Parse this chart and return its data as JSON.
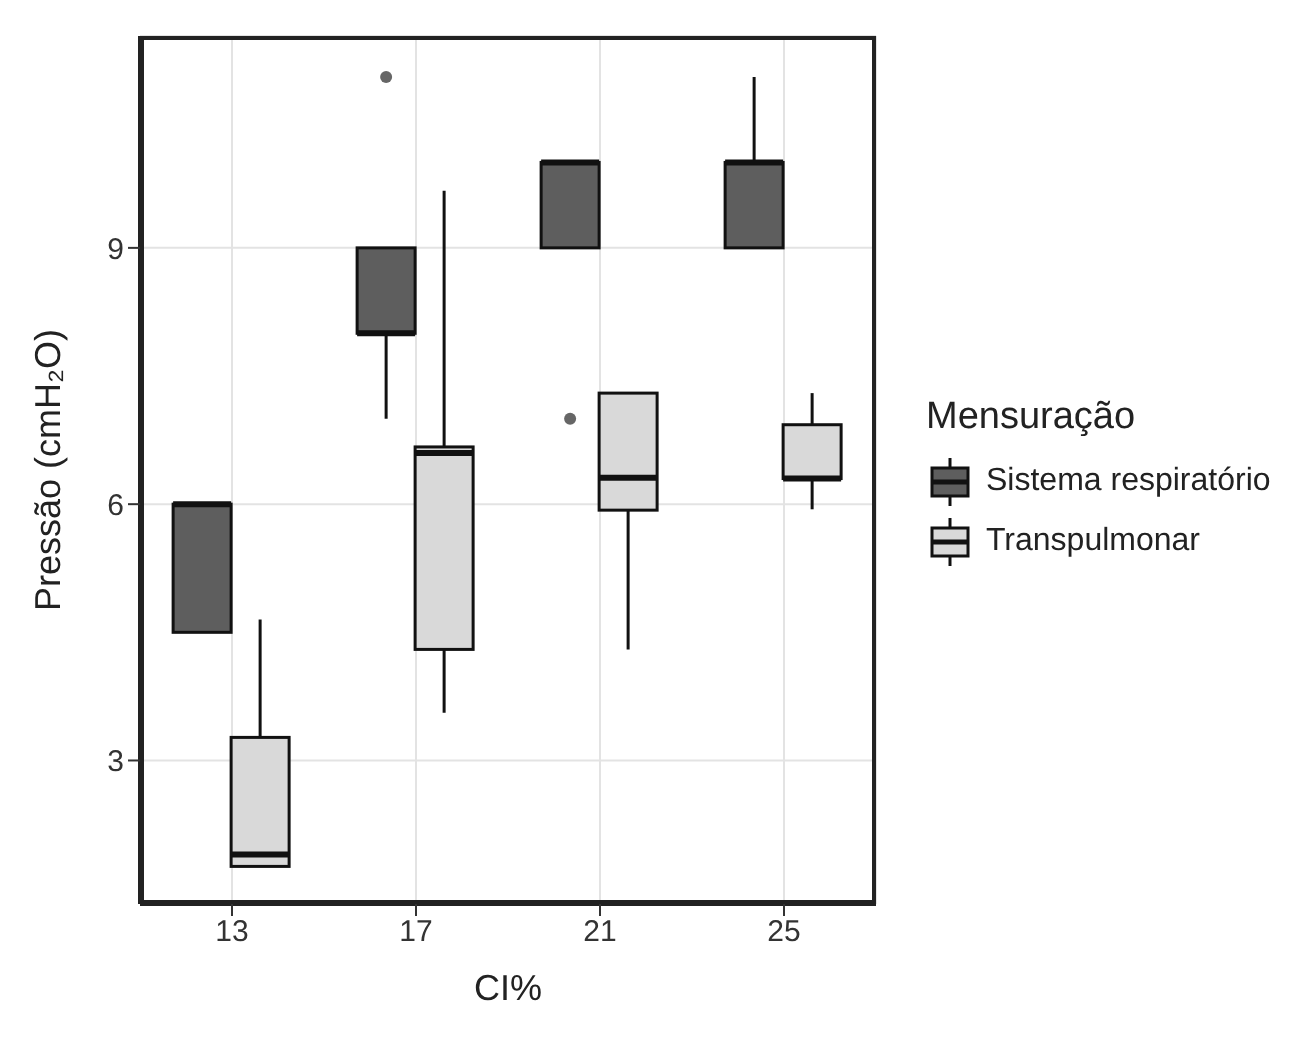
{
  "chart_data": {
    "type": "box",
    "xlabel": "CI%",
    "ylabel": "Pressão (cmH₂O)",
    "legend_title": "Mensuração",
    "legend": "right",
    "grid": true,
    "categories": [
      "13",
      "17",
      "21",
      "25"
    ],
    "ylim": [
      1.32,
      11.48
    ],
    "yticks": [
      3,
      6,
      9
    ],
    "series": [
      {
        "name": "Sistema respiratório",
        "color": "#5e5e5e",
        "boxes": [
          {
            "low": 4.5,
            "q1": 4.5,
            "median": 6,
            "q3": 6,
            "high": 6
          },
          {
            "low": 7,
            "q1": 8,
            "median": 8,
            "q3": 9,
            "high": 9,
            "outliers": [
              11
            ]
          },
          {
            "low": 9,
            "q1": 9,
            "median": 10,
            "q3": 10,
            "high": 10,
            "outliers": [
              7
            ]
          },
          {
            "low": 9,
            "q1": 9,
            "median": 10,
            "q3": 10,
            "high": 11
          }
        ]
      },
      {
        "name": "Transpulmonar",
        "color": "#d9d9d9",
        "boxes": [
          {
            "low": 1.76,
            "q1": 1.76,
            "median": 1.9,
            "q3": 3.27,
            "high": 4.65
          },
          {
            "low": 3.56,
            "q1": 4.3,
            "median": 6.6,
            "q3": 6.67,
            "high": 9.67
          },
          {
            "low": 4.3,
            "q1": 5.93,
            "median": 6.31,
            "q3": 7.3,
            "high": 7.3
          },
          {
            "low": 5.94,
            "q1": 6.3,
            "median": 6.3,
            "q3": 6.93,
            "high": 7.3
          }
        ]
      }
    ]
  }
}
